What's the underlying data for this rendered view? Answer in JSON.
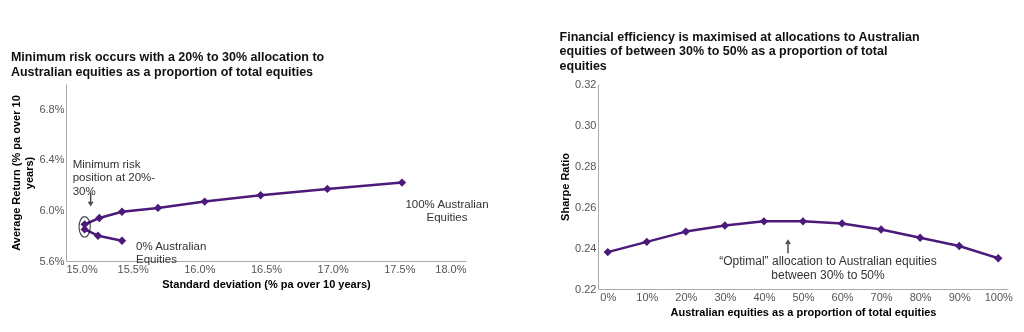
{
  "chart_data": [
    {
      "type": "line",
      "title": "Minimum  risk occurs with a 20% to 30% allocation  to\nAustralian  equities as a proportion of total equities",
      "xlabel": "Standard deviation (% pa over 10 years)",
      "ylabel": "Average Return (% pa over 10\nyears)",
      "series": [
        {
          "color": "#4b1a7a",
          "x": [
            15.42,
            15.24,
            15.14,
            15.14,
            15.25,
            15.42,
            15.69,
            16.04,
            16.46,
            16.96,
            17.52
          ],
          "values": [
            5.76,
            5.8,
            5.85,
            5.89,
            5.94,
            5.99,
            6.02,
            6.07,
            6.12,
            6.17,
            6.22
          ]
        }
      ],
      "xlim": [
        15.0,
        18.0
      ],
      "ylim": [
        5.6,
        7.0
      ],
      "xticks": [
        {
          "value": 15.0,
          "label": "15.0%"
        },
        {
          "value": 15.5,
          "label": "15.5%"
        },
        {
          "value": 16.0,
          "label": "16.0%"
        },
        {
          "value": 16.5,
          "label": "16.5%"
        },
        {
          "value": 17.0,
          "label": "17.0%"
        },
        {
          "value": 17.5,
          "label": "17.5%"
        },
        {
          "value": 18.0,
          "label": "18.0%"
        }
      ],
      "yticks": [
        {
          "value": 5.6,
          "label": "5.6%"
        },
        {
          "value": 6.0,
          "label": "6.0%"
        },
        {
          "value": 6.4,
          "label": "6.4%"
        },
        {
          "value": 6.8,
          "label": "6.8%"
        }
      ],
      "annotations": [
        {
          "text": "Minimum risk\nposition at 20%-\n30%",
          "x": 15.14,
          "y": 5.87
        },
        {
          "text": "0% Australian\nEquities",
          "x": 15.42,
          "y": 5.76
        },
        {
          "text": "100% Australian\nEquities",
          "x": 17.52,
          "y": 6.22
        }
      ],
      "marker": "diamond",
      "grid": false
    },
    {
      "type": "line",
      "title": "Financial  efficiency  is maximised  at allocations  to Australian\nequities  of between 30% to 50% as a proportion of total\nequities",
      "xlabel": "Australian  equities as a proportion of total equities",
      "ylabel": "Sharpe Ratio",
      "categories": [
        "0%",
        "10%",
        "20%",
        "30%",
        "40%",
        "50%",
        "60%",
        "70%",
        "80%",
        "90%",
        "100%"
      ],
      "series": [
        {
          "color": "#4b1a7a",
          "values": [
            0.238,
            0.243,
            0.248,
            0.251,
            0.253,
            0.253,
            0.252,
            0.249,
            0.245,
            0.241,
            0.235
          ]
        }
      ],
      "ylim": [
        0.22,
        0.32
      ],
      "yticks": [
        {
          "value": 0.22,
          "label": "0.22"
        },
        {
          "value": 0.24,
          "label": "0.24"
        },
        {
          "value": 0.26,
          "label": "0.26"
        },
        {
          "value": 0.28,
          "label": "0.28"
        },
        {
          "value": 0.3,
          "label": "0.30"
        },
        {
          "value": 0.32,
          "label": "0.32"
        }
      ],
      "annotations": [
        "“Optimal” allocation to Australian equities\nbetween 30% to 50%"
      ],
      "marker": "diamond",
      "grid": false
    }
  ]
}
